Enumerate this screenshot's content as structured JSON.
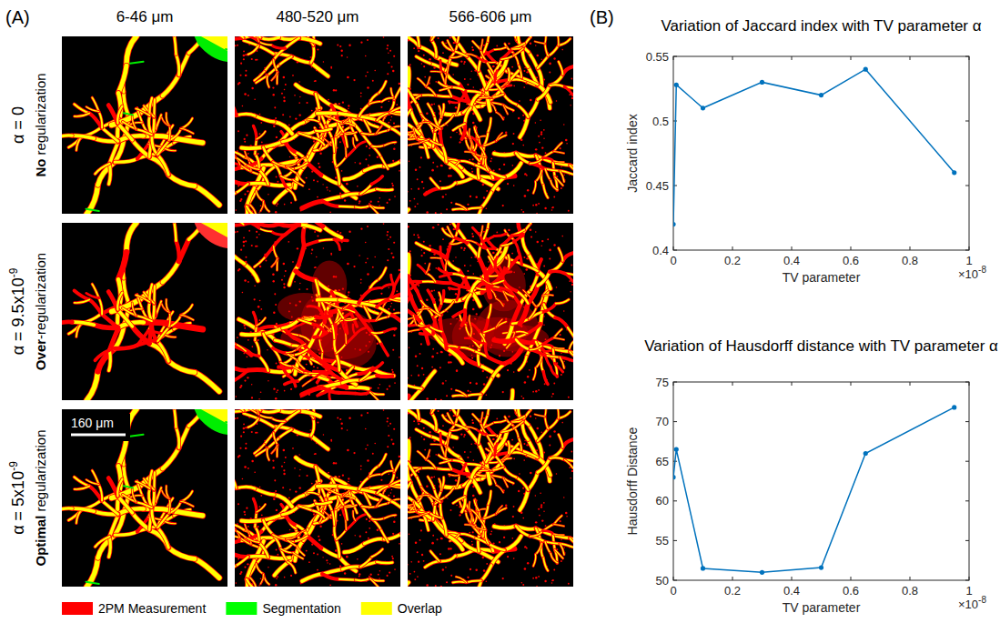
{
  "chart_data": [
    {
      "type": "line",
      "title": "Variation of Jaccard index with TV parameter α",
      "x_label": "TV parameter",
      "y_label": "Jaccard index",
      "x_offset_label": "×10",
      "x_offset_exponent": "-8",
      "x": [
        0,
        0.01,
        0.1,
        0.3,
        0.5,
        0.65,
        0.95
      ],
      "values": [
        0.42,
        0.528,
        0.51,
        0.53,
        0.52,
        0.54,
        0.46
      ],
      "color": "#0072bd",
      "marker": "dot",
      "line_style": "solid",
      "xlim": [
        0,
        1
      ],
      "xticks": [
        0,
        0.2,
        0.4,
        0.6,
        0.8,
        1
      ],
      "ylim": [
        0.4,
        0.55
      ],
      "yticks": [
        0.4,
        0.45,
        0.5,
        0.55
      ],
      "grid": false
    },
    {
      "type": "line",
      "title": "Variation of Hausdorff distance with TV parameter α",
      "x_label": "TV parameter",
      "y_label": "Hausdorff Distance",
      "x_offset_label": "×10",
      "x_offset_exponent": "-8",
      "x": [
        0,
        0.01,
        0.1,
        0.3,
        0.5,
        0.65,
        0.95
      ],
      "values": [
        63,
        66.5,
        51.5,
        51,
        51.6,
        66,
        71.8
      ],
      "color": "#0072bd",
      "marker": "dot",
      "line_style": "solid",
      "xlim": [
        0,
        1
      ],
      "xticks": [
        0,
        0.2,
        0.4,
        0.6,
        0.8,
        1
      ],
      "ylim": [
        50,
        75
      ],
      "yticks": [
        50,
        55,
        60,
        65,
        70,
        75
      ],
      "grid": false
    }
  ],
  "panel_a": {
    "label": "(A)",
    "columns": [
      "6-46 μm",
      "480-520 μm",
      "566-606 μm"
    ],
    "rows": [
      {
        "alpha": "α = 0",
        "exponent": null,
        "description": "No regularization"
      },
      {
        "alpha": "α = 9.5x10",
        "exponent": "-9",
        "description": "Over-regularization"
      },
      {
        "alpha": "α = 5x10",
        "exponent": "-9",
        "description": "Optimal regularization"
      }
    ],
    "scale_bar": "160 μm",
    "legend": [
      {
        "name": "2PM Measurement",
        "color": "#ff0000"
      },
      {
        "name": "Segmentation",
        "color": "#00ff00"
      },
      {
        "name": "Overlap",
        "color": "#ffff00"
      }
    ]
  },
  "panel_b": {
    "label": "(B)"
  }
}
